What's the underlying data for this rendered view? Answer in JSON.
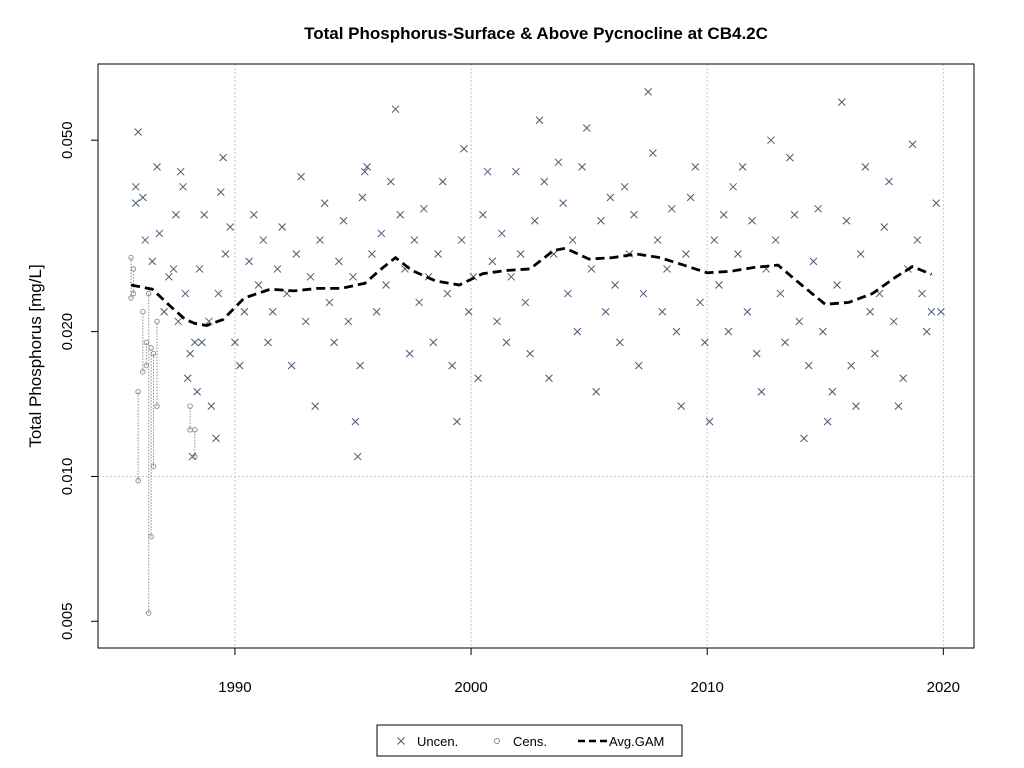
{
  "chart_data": {
    "type": "scatter",
    "title": "Total Phosphorus-Surface & Above Pycnocline at CB4.2C",
    "xlabel": "",
    "ylabel": "Total Phosphorus [mg/L]",
    "y_scale": "log",
    "xlim": [
      1984.2,
      2021.3
    ],
    "ylim": [
      0.0044,
      0.072
    ],
    "x_ticks": [
      1990,
      2000,
      2010,
      2020
    ],
    "x_tick_labels": [
      "1990",
      "2000",
      "2010",
      "2020"
    ],
    "y_ticks": [
      0.005,
      0.01,
      0.02,
      0.05
    ],
    "y_tick_labels": [
      "0.005",
      "0.010",
      "0.020",
      "0.050"
    ],
    "grid": true,
    "legend": {
      "placement": "bottom-center",
      "entries": [
        "Uncen.",
        "Cens.",
        "Avg.GAM"
      ]
    },
    "colors": {
      "uncensored": "#4a5a75",
      "censored": "#8a8a8a",
      "gam": "#000000",
      "grid": "#c8c8c8"
    },
    "series": [
      {
        "name": "Uncen.",
        "marker": "x",
        "points": [
          [
            1985.9,
            0.052
          ],
          [
            1985.8,
            0.04
          ],
          [
            1985.8,
            0.037
          ],
          [
            1986.1,
            0.038
          ],
          [
            1986.2,
            0.031
          ],
          [
            1986.5,
            0.028
          ],
          [
            1986.7,
            0.044
          ],
          [
            1986.8,
            0.032
          ],
          [
            1987.0,
            0.022
          ],
          [
            1987.2,
            0.026
          ],
          [
            1987.4,
            0.027
          ],
          [
            1987.5,
            0.035
          ],
          [
            1987.6,
            0.021
          ],
          [
            1987.7,
            0.043
          ],
          [
            1987.8,
            0.04
          ],
          [
            1987.9,
            0.024
          ],
          [
            1988.0,
            0.016
          ],
          [
            1988.1,
            0.018
          ],
          [
            1988.2,
            0.011
          ],
          [
            1988.3,
            0.019
          ],
          [
            1988.4,
            0.015
          ],
          [
            1988.5,
            0.027
          ],
          [
            1988.6,
            0.019
          ],
          [
            1988.7,
            0.035
          ],
          [
            1988.9,
            0.021
          ],
          [
            1989.0,
            0.014
          ],
          [
            1989.2,
            0.012
          ],
          [
            1989.3,
            0.024
          ],
          [
            1989.4,
            0.039
          ],
          [
            1989.5,
            0.046
          ],
          [
            1989.6,
            0.029
          ],
          [
            1989.8,
            0.033
          ],
          [
            1990.0,
            0.019
          ],
          [
            1990.2,
            0.017
          ],
          [
            1990.4,
            0.022
          ],
          [
            1990.6,
            0.028
          ],
          [
            1990.8,
            0.035
          ],
          [
            1991.0,
            0.025
          ],
          [
            1991.2,
            0.031
          ],
          [
            1991.4,
            0.019
          ],
          [
            1991.6,
            0.022
          ],
          [
            1991.8,
            0.027
          ],
          [
            1992.0,
            0.033
          ],
          [
            1992.2,
            0.024
          ],
          [
            1992.4,
            0.017
          ],
          [
            1992.6,
            0.029
          ],
          [
            1992.8,
            0.042
          ],
          [
            1993.0,
            0.021
          ],
          [
            1993.2,
            0.026
          ],
          [
            1993.4,
            0.014
          ],
          [
            1993.6,
            0.031
          ],
          [
            1993.8,
            0.037
          ],
          [
            1994.0,
            0.023
          ],
          [
            1994.2,
            0.019
          ],
          [
            1994.4,
            0.028
          ],
          [
            1994.6,
            0.034
          ],
          [
            1994.8,
            0.021
          ],
          [
            1995.0,
            0.026
          ],
          [
            1995.1,
            0.013
          ],
          [
            1995.2,
            0.011
          ],
          [
            1995.3,
            0.017
          ],
          [
            1995.4,
            0.038
          ],
          [
            1995.5,
            0.043
          ],
          [
            1995.6,
            0.044
          ],
          [
            1995.8,
            0.029
          ],
          [
            1996.0,
            0.022
          ],
          [
            1996.2,
            0.032
          ],
          [
            1996.4,
            0.025
          ],
          [
            1996.6,
            0.041
          ],
          [
            1996.8,
            0.058
          ],
          [
            1997.0,
            0.035
          ],
          [
            1997.2,
            0.027
          ],
          [
            1997.4,
            0.018
          ],
          [
            1997.6,
            0.031
          ],
          [
            1997.8,
            0.023
          ],
          [
            1998.0,
            0.036
          ],
          [
            1998.2,
            0.026
          ],
          [
            1998.4,
            0.019
          ],
          [
            1998.6,
            0.029
          ],
          [
            1998.8,
            0.041
          ],
          [
            1999.0,
            0.024
          ],
          [
            1999.2,
            0.017
          ],
          [
            1999.4,
            0.013
          ],
          [
            1999.6,
            0.031
          ],
          [
            1999.7,
            0.048
          ],
          [
            1999.9,
            0.022
          ],
          [
            2000.1,
            0.026
          ],
          [
            2000.3,
            0.016
          ],
          [
            2000.5,
            0.035
          ],
          [
            2000.7,
            0.043
          ],
          [
            2000.9,
            0.028
          ],
          [
            2001.1,
            0.021
          ],
          [
            2001.3,
            0.032
          ],
          [
            2001.5,
            0.019
          ],
          [
            2001.7,
            0.026
          ],
          [
            2001.9,
            0.043
          ],
          [
            2002.1,
            0.029
          ],
          [
            2002.3,
            0.023
          ],
          [
            2002.5,
            0.018
          ],
          [
            2002.7,
            0.034
          ],
          [
            2002.9,
            0.055
          ],
          [
            2003.1,
            0.041
          ],
          [
            2003.3,
            0.016
          ],
          [
            2003.5,
            0.029
          ],
          [
            2003.7,
            0.045
          ],
          [
            2003.9,
            0.037
          ],
          [
            2004.1,
            0.024
          ],
          [
            2004.3,
            0.031
          ],
          [
            2004.5,
            0.02
          ],
          [
            2004.7,
            0.044
          ],
          [
            2004.9,
            0.053
          ],
          [
            2005.1,
            0.027
          ],
          [
            2005.3,
            0.015
          ],
          [
            2005.5,
            0.034
          ],
          [
            2005.7,
            0.022
          ],
          [
            2005.9,
            0.038
          ],
          [
            2006.1,
            0.025
          ],
          [
            2006.3,
            0.019
          ],
          [
            2006.5,
            0.04
          ],
          [
            2006.7,
            0.029
          ],
          [
            2006.9,
            0.035
          ],
          [
            2007.1,
            0.017
          ],
          [
            2007.3,
            0.024
          ],
          [
            2007.5,
            0.063
          ],
          [
            2007.7,
            0.047
          ],
          [
            2007.9,
            0.031
          ],
          [
            2008.1,
            0.022
          ],
          [
            2008.3,
            0.027
          ],
          [
            2008.5,
            0.036
          ],
          [
            2008.7,
            0.02
          ],
          [
            2008.9,
            0.014
          ],
          [
            2009.1,
            0.029
          ],
          [
            2009.3,
            0.038
          ],
          [
            2009.5,
            0.044
          ],
          [
            2009.7,
            0.023
          ],
          [
            2009.9,
            0.019
          ],
          [
            2010.1,
            0.013
          ],
          [
            2010.3,
            0.031
          ],
          [
            2010.5,
            0.025
          ],
          [
            2010.7,
            0.035
          ],
          [
            2010.9,
            0.02
          ],
          [
            2011.1,
            0.04
          ],
          [
            2011.3,
            0.029
          ],
          [
            2011.5,
            0.044
          ],
          [
            2011.7,
            0.022
          ],
          [
            2011.9,
            0.034
          ],
          [
            2012.1,
            0.018
          ],
          [
            2012.3,
            0.015
          ],
          [
            2012.5,
            0.027
          ],
          [
            2012.7,
            0.05
          ],
          [
            2012.9,
            0.031
          ],
          [
            2013.1,
            0.024
          ],
          [
            2013.3,
            0.019
          ],
          [
            2013.5,
            0.046
          ],
          [
            2013.7,
            0.035
          ],
          [
            2013.9,
            0.021
          ],
          [
            2014.1,
            0.012
          ],
          [
            2014.3,
            0.017
          ],
          [
            2014.5,
            0.028
          ],
          [
            2014.7,
            0.036
          ],
          [
            2014.9,
            0.02
          ],
          [
            2015.1,
            0.013
          ],
          [
            2015.3,
            0.015
          ],
          [
            2015.5,
            0.025
          ],
          [
            2015.7,
            0.06
          ],
          [
            2015.9,
            0.034
          ],
          [
            2016.1,
            0.017
          ],
          [
            2016.3,
            0.014
          ],
          [
            2016.5,
            0.029
          ],
          [
            2016.7,
            0.044
          ],
          [
            2016.9,
            0.022
          ],
          [
            2017.1,
            0.018
          ],
          [
            2017.3,
            0.024
          ],
          [
            2017.5,
            0.033
          ],
          [
            2017.7,
            0.041
          ],
          [
            2017.9,
            0.021
          ],
          [
            2018.1,
            0.014
          ],
          [
            2018.3,
            0.016
          ],
          [
            2018.5,
            0.027
          ],
          [
            2018.7,
            0.049
          ],
          [
            2018.9,
            0.031
          ],
          [
            2019.1,
            0.024
          ],
          [
            2019.3,
            0.02
          ],
          [
            2019.5,
            0.022
          ],
          [
            2019.7,
            0.037
          ],
          [
            2019.9,
            0.022
          ]
        ]
      },
      {
        "name": "Cens.",
        "marker": "circle-interval",
        "intervals": [
          [
            1985.6,
            0.0235,
            0.0285
          ],
          [
            1985.7,
            0.024,
            0.027
          ],
          [
            1985.9,
            0.0098,
            0.015
          ],
          [
            1986.1,
            0.0165,
            0.022
          ],
          [
            1986.25,
            0.017,
            0.019
          ],
          [
            1986.35,
            0.0052,
            0.024
          ],
          [
            1986.45,
            0.0075,
            0.0185
          ],
          [
            1986.55,
            0.0105,
            0.018
          ],
          [
            1986.7,
            0.014,
            0.021
          ],
          [
            1988.1,
            0.0125,
            0.014
          ],
          [
            1988.3,
            0.011,
            0.0125
          ]
        ]
      },
      {
        "name": "Avg.GAM",
        "line": "dashed",
        "x": [
          1985.6,
          1986.5,
          1987.3,
          1987.9,
          1988.3,
          1988.8,
          1989.5,
          1990.4,
          1991.5,
          1992.5,
          1993.5,
          1994.5,
          1995.5,
          1996.2,
          1996.8,
          1997.5,
          1998.5,
          1999.5,
          2000.5,
          2001.5,
          2002.5,
          2003.5,
          2004.0,
          2005.0,
          2006.0,
          2007.0,
          2008.0,
          2009.0,
          2010.0,
          2011.0,
          2012.0,
          2013.0,
          2014.0,
          2015.0,
          2016.0,
          2017.0,
          2018.0,
          2018.7,
          2019.5
        ],
        "values": [
          0.025,
          0.0245,
          0.0225,
          0.0212,
          0.0208,
          0.0206,
          0.0212,
          0.0235,
          0.0245,
          0.0243,
          0.0246,
          0.0246,
          0.0252,
          0.027,
          0.0285,
          0.0268,
          0.0255,
          0.025,
          0.0264,
          0.0268,
          0.027,
          0.0295,
          0.0298,
          0.0283,
          0.0285,
          0.029,
          0.0285,
          0.0275,
          0.0265,
          0.0267,
          0.0272,
          0.0275,
          0.025,
          0.0228,
          0.023,
          0.024,
          0.026,
          0.0273,
          0.0263
        ]
      }
    ]
  }
}
